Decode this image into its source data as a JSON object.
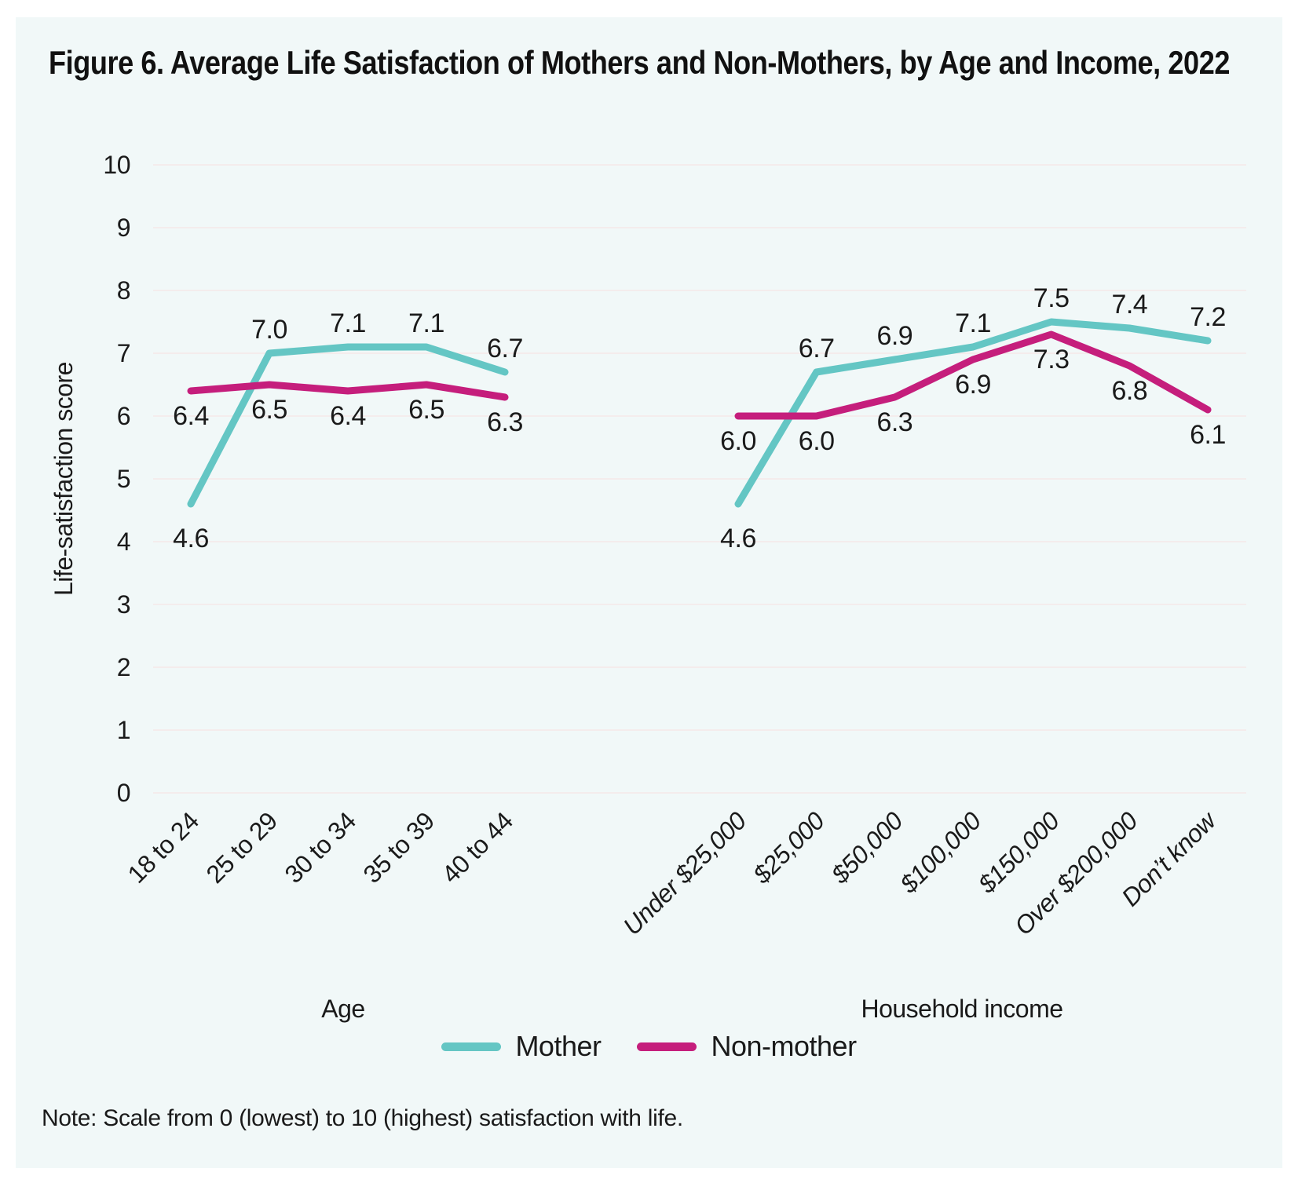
{
  "title": "Figure 6. Average Life Satisfaction of Mothers and Non-Mothers, by Age and Income, 2022",
  "note": "Note: Scale from 0 (lowest) to 10 (highest) satisfaction with life.",
  "colors": {
    "mother": "#64c6c4",
    "non_mother": "#c51e7c",
    "card_background": "#f1f8f8",
    "gridline": "#f4ecec",
    "text": "#1a1a1a"
  },
  "legend": [
    {
      "name": "Mother",
      "color": "#64c6c4"
    },
    {
      "name": "Non-mother",
      "color": "#c51e7c"
    }
  ],
  "y_axis": {
    "label": "Life-satisfaction score",
    "min": 0,
    "max": 10,
    "ticks": [
      0,
      1,
      2,
      3,
      4,
      5,
      6,
      7,
      8,
      9,
      10
    ]
  },
  "chart_data": [
    {
      "type": "line",
      "panel": "age",
      "xlabel": "Age",
      "categories": [
        "18 to 24",
        "25 to 29",
        "30 to 34",
        "35 to 39",
        "40 to 44"
      ],
      "series": [
        {
          "name": "Mother",
          "color": "#64c6c4",
          "values": [
            4.6,
            7.0,
            7.1,
            7.1,
            6.7
          ]
        },
        {
          "name": "Non-mother",
          "color": "#c51e7c",
          "values": [
            6.4,
            6.5,
            6.4,
            6.5,
            6.3
          ]
        }
      ],
      "ylim": [
        0,
        10
      ],
      "grid": true,
      "legend_position": "bottom"
    },
    {
      "type": "line",
      "panel": "income",
      "xlabel": "Household income",
      "categories": [
        "Under $25,000",
        "$25,000",
        "$50,000",
        "$100,000",
        "$150,000",
        "Over $200,000",
        "Don’t know"
      ],
      "series": [
        {
          "name": "Mother",
          "color": "#64c6c4",
          "values": [
            4.6,
            6.7,
            6.9,
            7.1,
            7.5,
            7.4,
            7.2
          ]
        },
        {
          "name": "Non-mother",
          "color": "#c51e7c",
          "values": [
            6.0,
            6.0,
            6.3,
            6.9,
            7.3,
            6.8,
            6.1
          ]
        }
      ],
      "ylim": [
        0,
        10
      ],
      "grid": true,
      "legend_position": "bottom"
    }
  ]
}
